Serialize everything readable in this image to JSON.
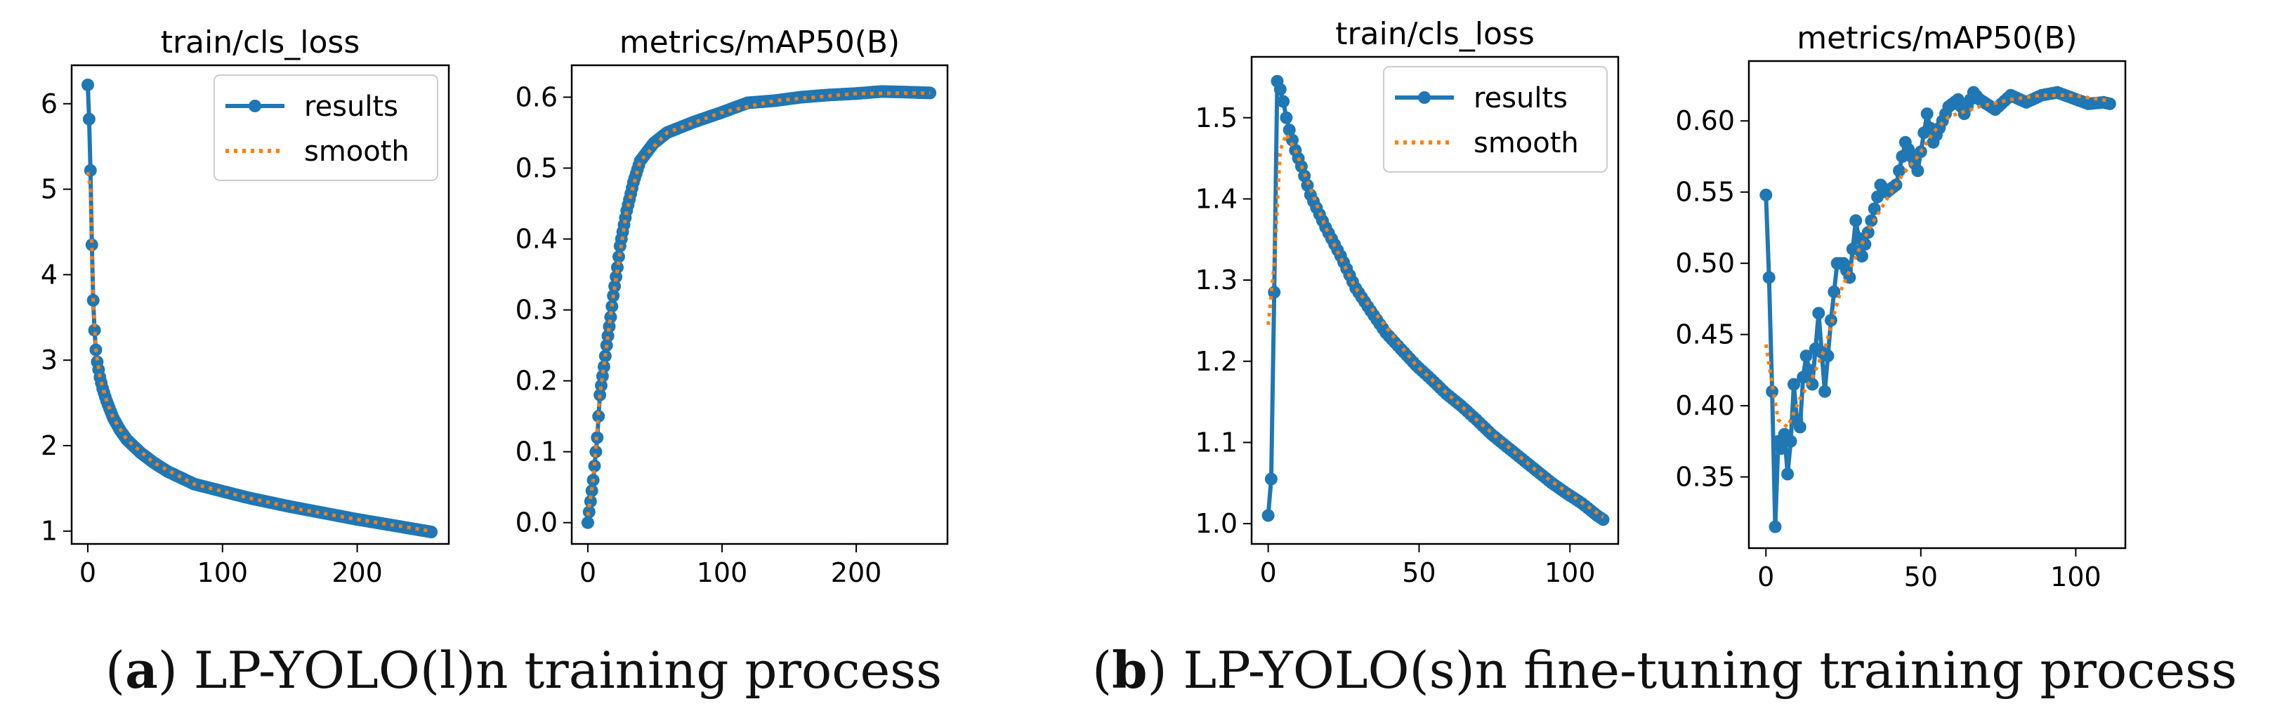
{
  "captions": {
    "a": {
      "letter": "a",
      "text": "LP-YOLO(l)n training process"
    },
    "b": {
      "letter": "b",
      "text": "LP-YOLO(s)n fine-tuning training process"
    }
  },
  "colors": {
    "results": "#1f77b4",
    "smooth": "#ff7f0e"
  },
  "chart_data": [
    {
      "type": "line",
      "title": "train/cls_loss",
      "xlabel": "",
      "ylabel": "",
      "xlim": [
        -12,
        268
      ],
      "ylim": [
        0.85,
        6.45
      ],
      "xticks": [
        0,
        100,
        200
      ],
      "yticks": [
        1,
        2,
        3,
        4,
        5,
        6
      ],
      "legend": {
        "position": "top-right",
        "entries": [
          "results",
          "smooth"
        ]
      },
      "grid": false,
      "series": [
        {
          "name": "results",
          "curve": {
            "kind": "decay",
            "n": 256,
            "anchors": [
              [
                1,
                6.22
              ],
              [
                2,
                5.82
              ],
              [
                3,
                5.22
              ],
              [
                4,
                4.35
              ],
              [
                5,
                3.7
              ],
              [
                6,
                3.35
              ],
              [
                7,
                3.12
              ],
              [
                8,
                2.98
              ],
              [
                10,
                2.8
              ],
              [
                12,
                2.67
              ],
              [
                15,
                2.52
              ],
              [
                20,
                2.32
              ],
              [
                25,
                2.18
              ],
              [
                30,
                2.07
              ],
              [
                40,
                1.92
              ],
              [
                50,
                1.8
              ],
              [
                60,
                1.7
              ],
              [
                80,
                1.55
              ],
              [
                100,
                1.47
              ],
              [
                120,
                1.39
              ],
              [
                150,
                1.29
              ],
              [
                180,
                1.2
              ],
              [
                200,
                1.14
              ],
              [
                230,
                1.06
              ],
              [
                256,
                0.99
              ]
            ]
          }
        },
        {
          "name": "smooth",
          "curve": {
            "kind": "decay",
            "n": 256,
            "anchors": [
              [
                1,
                5.2
              ],
              [
                3,
                5.0
              ],
              [
                5,
                3.7
              ],
              [
                7,
                3.12
              ],
              [
                10,
                2.8
              ],
              [
                15,
                2.52
              ],
              [
                20,
                2.32
              ],
              [
                30,
                2.07
              ],
              [
                50,
                1.8
              ],
              [
                80,
                1.55
              ],
              [
                120,
                1.39
              ],
              [
                160,
                1.25
              ],
              [
                200,
                1.14
              ],
              [
                256,
                1.0
              ]
            ]
          }
        }
      ]
    },
    {
      "type": "line",
      "title": "metrics/mAP50(B)",
      "xlabel": "",
      "ylabel": "",
      "xlim": [
        -12,
        268
      ],
      "ylim": [
        -0.03,
        0.645
      ],
      "xticks": [
        0,
        100,
        200
      ],
      "yticks": [
        0.0,
        0.1,
        0.2,
        0.3,
        0.4,
        0.5,
        0.6
      ],
      "legend": null,
      "grid": false,
      "series": [
        {
          "name": "results",
          "curve": {
            "kind": "rise",
            "n": 256,
            "anchors": [
              [
                1,
                0.0
              ],
              [
                3,
                0.03
              ],
              [
                5,
                0.06
              ],
              [
                8,
                0.12
              ],
              [
                10,
                0.18
              ],
              [
                13,
                0.22
              ],
              [
                15,
                0.25
              ],
              [
                18,
                0.29
              ],
              [
                20,
                0.32
              ],
              [
                23,
                0.36
              ],
              [
                25,
                0.39
              ],
              [
                28,
                0.42
              ],
              [
                30,
                0.44
              ],
              [
                35,
                0.48
              ],
              [
                40,
                0.51
              ],
              [
                50,
                0.535
              ],
              [
                60,
                0.55
              ],
              [
                80,
                0.565
              ],
              [
                100,
                0.578
              ],
              [
                120,
                0.592
              ],
              [
                140,
                0.595
              ],
              [
                160,
                0.6
              ],
              [
                180,
                0.603
              ],
              [
                200,
                0.605
              ],
              [
                220,
                0.608
              ],
              [
                240,
                0.607
              ],
              [
                256,
                0.606
              ]
            ]
          }
        },
        {
          "name": "smooth",
          "curve": {
            "kind": "rise",
            "n": 256,
            "anchors": [
              [
                1,
                0.01
              ],
              [
                5,
                0.06
              ],
              [
                10,
                0.18
              ],
              [
                20,
                0.32
              ],
              [
                30,
                0.44
              ],
              [
                40,
                0.51
              ],
              [
                60,
                0.55
              ],
              [
                100,
                0.578
              ],
              [
                140,
                0.595
              ],
              [
                200,
                0.605
              ],
              [
                256,
                0.606
              ]
            ]
          }
        }
      ]
    },
    {
      "type": "line",
      "title": "train/cls_loss",
      "xlabel": "",
      "ylabel": "",
      "xlim": [
        -5.5,
        116
      ],
      "ylim": [
        0.975,
        1.575
      ],
      "xticks": [
        0,
        50,
        100
      ],
      "yticks": [
        1.0,
        1.1,
        1.2,
        1.3,
        1.4,
        1.5
      ],
      "legend": {
        "position": "top-right",
        "entries": [
          "results",
          "smooth"
        ]
      },
      "grid": false,
      "series": [
        {
          "name": "results",
          "curve": {
            "kind": "peak",
            "n": 112,
            "anchors": [
              [
                1,
                1.01
              ],
              [
                2,
                1.055
              ],
              [
                3,
                1.285
              ],
              [
                4,
                1.545
              ],
              [
                5,
                1.535
              ],
              [
                6,
                1.52
              ],
              [
                7,
                1.5
              ],
              [
                8,
                1.485
              ],
              [
                10,
                1.46
              ],
              [
                12,
                1.44
              ],
              [
                15,
                1.405
              ],
              [
                20,
                1.365
              ],
              [
                25,
                1.33
              ],
              [
                30,
                1.29
              ],
              [
                35,
                1.262
              ],
              [
                40,
                1.235
              ],
              [
                45,
                1.215
              ],
              [
                50,
                1.195
              ],
              [
                55,
                1.178
              ],
              [
                60,
                1.16
              ],
              [
                65,
                1.145
              ],
              [
                70,
                1.128
              ],
              [
                75,
                1.11
              ],
              [
                80,
                1.095
              ],
              [
                85,
                1.08
              ],
              [
                90,
                1.065
              ],
              [
                95,
                1.05
              ],
              [
                100,
                1.037
              ],
              [
                105,
                1.025
              ],
              [
                110,
                1.01
              ],
              [
                112,
                1.005
              ]
            ]
          }
        },
        {
          "name": "smooth",
          "curve": {
            "kind": "peak",
            "n": 112,
            "anchors": [
              [
                1,
                1.245
              ],
              [
                3,
                1.32
              ],
              [
                5,
                1.46
              ],
              [
                7,
                1.48
              ],
              [
                10,
                1.46
              ],
              [
                20,
                1.365
              ],
              [
                30,
                1.29
              ],
              [
                50,
                1.195
              ],
              [
                70,
                1.128
              ],
              [
                90,
                1.065
              ],
              [
                112,
                1.008
              ]
            ]
          }
        }
      ]
    },
    {
      "type": "line",
      "title": "metrics/mAP50(B)",
      "xlabel": "",
      "ylabel": "",
      "xlim": [
        -5.5,
        116
      ],
      "ylim": [
        0.3,
        0.642
      ],
      "xticks": [
        0,
        50,
        100
      ],
      "yticks": [
        0.35,
        0.4,
        0.45,
        0.5,
        0.55,
        0.6
      ],
      "legend": null,
      "grid": false,
      "series": [
        {
          "name": "results",
          "curve": {
            "kind": "noisy",
            "n": 112,
            "anchors": [
              [
                1,
                0.548
              ],
              [
                2,
                0.49
              ],
              [
                3,
                0.41
              ],
              [
                4,
                0.315
              ],
              [
                5,
                0.375
              ],
              [
                6,
                0.37
              ],
              [
                7,
                0.38
              ],
              [
                8,
                0.352
              ],
              [
                9,
                0.375
              ],
              [
                10,
                0.415
              ],
              [
                11,
                0.39
              ],
              [
                12,
                0.385
              ],
              [
                13,
                0.42
              ],
              [
                14,
                0.435
              ],
              [
                16,
                0.415
              ],
              [
                18,
                0.465
              ],
              [
                20,
                0.41
              ],
              [
                22,
                0.46
              ],
              [
                24,
                0.5
              ],
              [
                26,
                0.5
              ],
              [
                28,
                0.49
              ],
              [
                30,
                0.53
              ],
              [
                32,
                0.505
              ],
              [
                35,
                0.53
              ],
              [
                38,
                0.555
              ],
              [
                40,
                0.55
              ],
              [
                43,
                0.555
              ],
              [
                46,
                0.585
              ],
              [
                48,
                0.575
              ],
              [
                50,
                0.565
              ],
              [
                53,
                0.605
              ],
              [
                55,
                0.585
              ],
              [
                58,
                0.6
              ],
              [
                60,
                0.61
              ],
              [
                63,
                0.615
              ],
              [
                65,
                0.605
              ],
              [
                68,
                0.62
              ],
              [
                70,
                0.615
              ],
              [
                75,
                0.608
              ],
              [
                80,
                0.618
              ],
              [
                85,
                0.613
              ],
              [
                90,
                0.618
              ],
              [
                95,
                0.62
              ],
              [
                100,
                0.616
              ],
              [
                105,
                0.612
              ],
              [
                110,
                0.613
              ],
              [
                112,
                0.612
              ]
            ]
          }
        },
        {
          "name": "smooth",
          "curve": {
            "kind": "noisy",
            "n": 112,
            "anchors": [
              [
                1,
                0.443
              ],
              [
                3,
                0.415
              ],
              [
                5,
                0.39
              ],
              [
                8,
                0.385
              ],
              [
                12,
                0.405
              ],
              [
                16,
                0.42
              ],
              [
                20,
                0.44
              ],
              [
                25,
                0.48
              ],
              [
                30,
                0.505
              ],
              [
                35,
                0.527
              ],
              [
                40,
                0.545
              ],
              [
                45,
                0.562
              ],
              [
                50,
                0.575
              ],
              [
                55,
                0.592
              ],
              [
                60,
                0.603
              ],
              [
                70,
                0.61
              ],
              [
                80,
                0.615
              ],
              [
                90,
                0.618
              ],
              [
                100,
                0.618
              ],
              [
                112,
                0.614
              ]
            ]
          }
        }
      ]
    }
  ]
}
